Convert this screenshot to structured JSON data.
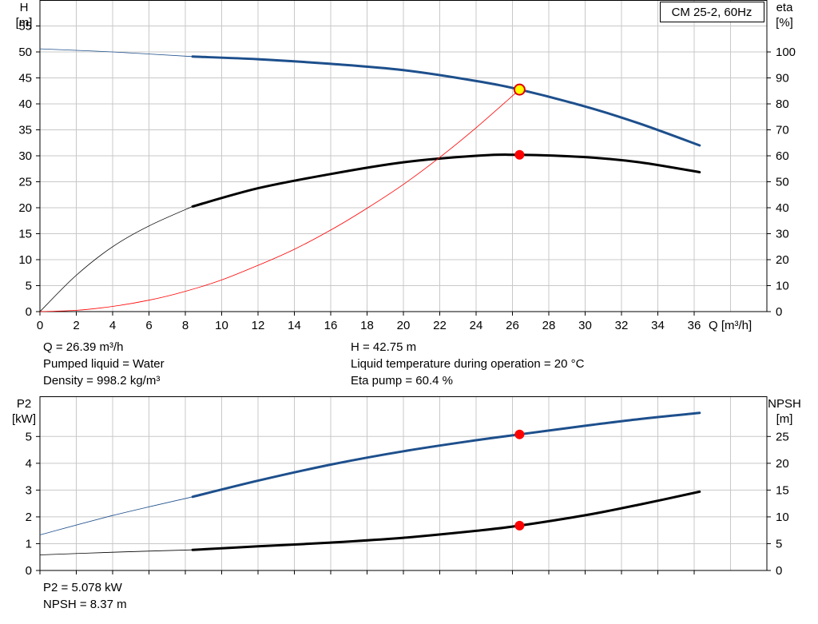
{
  "top_info": {
    "flow": "Q = 26.39 m³/h",
    "liquid": "Pumped liquid = Water",
    "density": "Density = 998.2 kg/m³",
    "head": "H = 42.75 m",
    "temperature": "Liquid temperature during operation = 20 °C",
    "eta": "Eta pump = 60.4 %"
  },
  "bottom_info": {
    "p2": "P2 = 5.078 kW",
    "npsh": "NPSH = 8.37 m"
  },
  "colors": {
    "blue": "#1d4f8c",
    "black": "#000000",
    "red": "#ff0000",
    "marker_yellow": "#ffff00",
    "grid": "#c8c8c8"
  },
  "chart_data": [
    {
      "type": "line",
      "legend_box": "CM 25-2, 60Hz",
      "ylabel_left": [
        "H",
        "[m]"
      ],
      "ylabel_right": [
        "eta",
        "[%]"
      ],
      "xlabel": "Q [m³/h]",
      "xlim": [
        0,
        40
      ],
      "ylim_left": [
        0,
        60
      ],
      "ylim_right": [
        0,
        120
      ],
      "x_ticks": [
        0,
        2,
        4,
        6,
        8,
        10,
        12,
        14,
        16,
        18,
        20,
        22,
        24,
        26,
        28,
        30,
        32,
        34,
        36
      ],
      "y_ticks_left": [
        0,
        5,
        10,
        15,
        20,
        25,
        30,
        35,
        40,
        45,
        50,
        55
      ],
      "y_ticks_right": [
        0,
        10,
        20,
        30,
        40,
        50,
        60,
        70,
        80,
        90,
        100
      ],
      "grid": true,
      "series": [
        {
          "id": "head",
          "axis": "left",
          "color": "#1d4f8c",
          "working_from": 8.4,
          "x": [
            0,
            4,
            8.4,
            12,
            16,
            20,
            24,
            26.39,
            30,
            33,
            36.3
          ],
          "y": [
            50.6,
            50.0,
            49.1,
            48.6,
            47.7,
            46.5,
            44.4,
            42.75,
            39.5,
            36.2,
            32.0
          ]
        },
        {
          "id": "efficiency",
          "axis": "right",
          "color": "#000000",
          "working_from": 8.4,
          "x": [
            0,
            2,
            4,
            6,
            8.4,
            12,
            16,
            20,
            24,
            26.4,
            30,
            33,
            36.3
          ],
          "y": [
            0,
            14,
            25,
            33,
            40.5,
            47.5,
            53,
            57.5,
            60,
            60.4,
            59.5,
            57.5,
            53.7
          ]
        },
        {
          "id": "system_curve",
          "axis": "left",
          "color": "#ff0000",
          "x": [
            0,
            2,
            4,
            6,
            8,
            10,
            12,
            14,
            16,
            18,
            20,
            22,
            24,
            26.39
          ],
          "y": [
            0,
            0.25,
            1.0,
            2.2,
            3.9,
            6.1,
            8.9,
            12.0,
            15.7,
            19.9,
            24.5,
            29.7,
            35.4,
            42.75
          ]
        }
      ],
      "operating_points": [
        {
          "axis": "left",
          "x": 26.39,
          "y": 42.75,
          "fill": "#ffff00"
        },
        {
          "axis": "right",
          "x": 26.39,
          "y": 60.4,
          "fill": "#ff0000"
        }
      ]
    },
    {
      "type": "line",
      "ylabel_left": [
        "P2",
        "[kW]"
      ],
      "ylabel_right": [
        "NPSH",
        "[m]"
      ],
      "xlim": [
        0,
        40
      ],
      "ylim_left": [
        0,
        6.5
      ],
      "ylim_right": [
        0,
        32.5
      ],
      "x_ticks": [
        0,
        2,
        4,
        6,
        8,
        10,
        12,
        14,
        16,
        18,
        20,
        22,
        24,
        26,
        28,
        30,
        32,
        34,
        36
      ],
      "y_ticks_left": [
        0,
        1,
        2,
        3,
        4,
        5
      ],
      "y_ticks_right": [
        0,
        5,
        10,
        15,
        20,
        25
      ],
      "grid": true,
      "series": [
        {
          "id": "power_p2",
          "axis": "left",
          "color": "#1d4f8c",
          "working_from": 8.4,
          "x": [
            0,
            4,
            8.4,
            12,
            16,
            20,
            24,
            26.39,
            30,
            33,
            36.3
          ],
          "y": [
            1.33,
            2.05,
            2.75,
            3.35,
            3.95,
            4.45,
            4.86,
            5.078,
            5.4,
            5.65,
            5.88
          ]
        },
        {
          "id": "npsh",
          "axis": "right",
          "color": "#000000",
          "working_from": 8.4,
          "x": [
            0,
            4,
            8.4,
            12,
            16,
            20,
            24,
            26.39,
            30,
            33,
            36.3
          ],
          "y": [
            2.9,
            3.4,
            3.85,
            4.5,
            5.2,
            6.1,
            7.4,
            8.37,
            10.3,
            12.3,
            14.7
          ]
        }
      ],
      "operating_points": [
        {
          "axis": "left",
          "x": 26.39,
          "y": 5.078,
          "fill": "#ff0000"
        },
        {
          "axis": "right",
          "x": 26.39,
          "y": 8.37,
          "fill": "#ff0000"
        }
      ]
    }
  ]
}
